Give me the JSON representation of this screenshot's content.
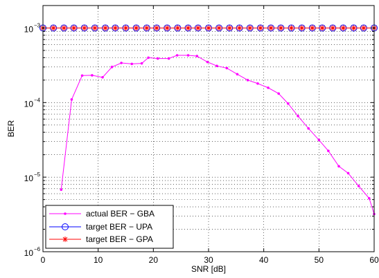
{
  "chart_data": {
    "type": "line",
    "xlabel": "SNR [dB]",
    "ylabel": "BER",
    "xlim": [
      0,
      60
    ],
    "ylim": [
      1e-06,
      0.002
    ],
    "yscale": "log",
    "grid": true,
    "legend_position": "bottom-left",
    "x_ticks": [
      "0",
      "10",
      "20",
      "30",
      "40",
      "50",
      "60"
    ],
    "y_ticks": [
      {
        "base": "10",
        "exp": "−6"
      },
      {
        "base": "10",
        "exp": "−5"
      },
      {
        "base": "10",
        "exp": "−4"
      },
      {
        "base": "10",
        "exp": "−3"
      }
    ],
    "series": [
      {
        "name": "actual BER − GBA",
        "color": "#ff00ff",
        "marker": "dot",
        "x": [
          3.3,
          5.2,
          7.1,
          8.9,
          10.8,
          12.5,
          14.2,
          16.1,
          17.9,
          19.1,
          20.8,
          22.8,
          24.3,
          26.3,
          27.9,
          29.8,
          31.5,
          33.3,
          35.2,
          37.1,
          38.9,
          40.8,
          42.7,
          44.4,
          46.2,
          48.1,
          50,
          51.7,
          53.6,
          55.3,
          57.2,
          59.1,
          60
        ],
        "y": [
          6.8e-06,
          0.00011,
          0.00023,
          0.000232,
          0.000218,
          0.0003,
          0.00034,
          0.00033,
          0.000335,
          0.0004,
          0.00039,
          0.00039,
          0.00043,
          0.00043,
          0.00042,
          0.00035,
          0.00031,
          0.00029,
          0.00024,
          0.0002,
          0.00018,
          0.000158,
          0.000132,
          9.7e-05,
          6.6e-05,
          4.5e-05,
          3.15e-05,
          2.25e-05,
          1.4e-05,
          1.13e-05,
          7.6e-06,
          5.2e-06,
          3.2e-06
        ]
      },
      {
        "name": "target BER − UPA",
        "color": "#0000ff",
        "marker": "circle",
        "x": [
          0,
          1.9,
          3.8,
          5.6,
          7.5,
          9.4,
          11.3,
          13.1,
          15,
          16.9,
          18.8,
          20.6,
          22.5,
          24.4,
          26.3,
          28.1,
          30,
          31.9,
          33.8,
          35.6,
          37.5,
          39.4,
          41.3,
          43.1,
          45,
          46.9,
          48.8,
          50.6,
          52.5,
          54.4,
          56.3,
          58.1,
          60
        ],
        "y": [
          0.001,
          0.001,
          0.001,
          0.001,
          0.001,
          0.001,
          0.001,
          0.001,
          0.001,
          0.001,
          0.001,
          0.001,
          0.001,
          0.001,
          0.001,
          0.001,
          0.001,
          0.001,
          0.001,
          0.001,
          0.001,
          0.001,
          0.001,
          0.001,
          0.001,
          0.001,
          0.001,
          0.001,
          0.001,
          0.001,
          0.001,
          0.001,
          0.001
        ]
      },
      {
        "name": "target BER − GPA",
        "color": "#ff0000",
        "marker": "star",
        "x": [
          0,
          1.9,
          3.8,
          5.6,
          7.5,
          9.4,
          11.3,
          13.1,
          15,
          16.9,
          18.8,
          20.6,
          22.5,
          24.4,
          26.3,
          28.1,
          30,
          31.9,
          33.8,
          35.6,
          37.5,
          39.4,
          41.3,
          43.1,
          45,
          46.9,
          48.8,
          50.6,
          52.5,
          54.4,
          56.3,
          58.1,
          60
        ],
        "y": [
          0.001,
          0.001,
          0.001,
          0.001,
          0.001,
          0.001,
          0.001,
          0.001,
          0.001,
          0.001,
          0.001,
          0.001,
          0.001,
          0.001,
          0.001,
          0.001,
          0.001,
          0.001,
          0.001,
          0.001,
          0.001,
          0.001,
          0.001,
          0.001,
          0.001,
          0.001,
          0.001,
          0.001,
          0.001,
          0.001,
          0.001,
          0.001,
          0.001
        ]
      }
    ]
  }
}
